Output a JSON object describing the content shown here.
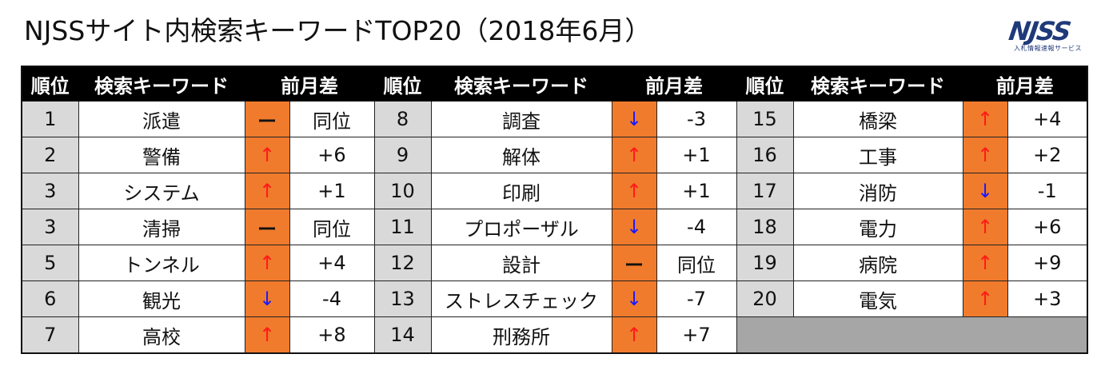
{
  "title": "NJSSサイト内検索キーワードTOP20（2018年6月）",
  "logo": {
    "mark": "NJSS",
    "sub": "入札情報速報サービス"
  },
  "headers": {
    "rank": "順位",
    "keyword": "検索キーワード",
    "diff": "前月差"
  },
  "arrows": {
    "up": "↑",
    "down": "↓",
    "same": "ー"
  },
  "columns": [
    [
      {
        "rank": "1",
        "keyword": "派遣",
        "trend": "same",
        "diff": "同位"
      },
      {
        "rank": "2",
        "keyword": "警備",
        "trend": "up",
        "diff": "+6"
      },
      {
        "rank": "3",
        "keyword": "システム",
        "trend": "up",
        "diff": "+1"
      },
      {
        "rank": "3",
        "keyword": "清掃",
        "trend": "same",
        "diff": "同位"
      },
      {
        "rank": "5",
        "keyword": "トンネル",
        "trend": "up",
        "diff": "+4"
      },
      {
        "rank": "6",
        "keyword": "観光",
        "trend": "down",
        "diff": "-4"
      },
      {
        "rank": "7",
        "keyword": "高校",
        "trend": "up",
        "diff": "+8"
      }
    ],
    [
      {
        "rank": "8",
        "keyword": "調査",
        "trend": "down",
        "diff": "-3"
      },
      {
        "rank": "9",
        "keyword": "解体",
        "trend": "up",
        "diff": "+1"
      },
      {
        "rank": "10",
        "keyword": "印刷",
        "trend": "up",
        "diff": "+1"
      },
      {
        "rank": "11",
        "keyword": "プロポーザル",
        "trend": "down",
        "diff": "-4"
      },
      {
        "rank": "12",
        "keyword": "設計",
        "trend": "same",
        "diff": "同位"
      },
      {
        "rank": "13",
        "keyword": "ストレスチェック",
        "trend": "down",
        "diff": "-7"
      },
      {
        "rank": "14",
        "keyword": "刑務所",
        "trend": "up",
        "diff": "+7"
      }
    ],
    [
      {
        "rank": "15",
        "keyword": "橋梁",
        "trend": "up",
        "diff": "+4"
      },
      {
        "rank": "16",
        "keyword": "工事",
        "trend": "up",
        "diff": "+2"
      },
      {
        "rank": "17",
        "keyword": "消防",
        "trend": "down",
        "diff": "-1"
      },
      {
        "rank": "18",
        "keyword": "電力",
        "trend": "up",
        "diff": "+6"
      },
      {
        "rank": "19",
        "keyword": "病院",
        "trend": "up",
        "diff": "+9"
      },
      {
        "rank": "20",
        "keyword": "電気",
        "trend": "up",
        "diff": "+3"
      },
      null
    ]
  ]
}
